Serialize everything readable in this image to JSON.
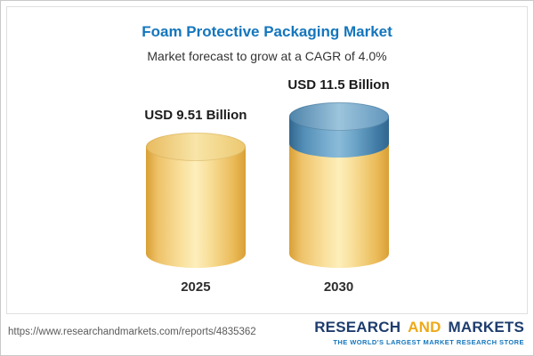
{
  "chart_data": {
    "type": "bar",
    "bar_style": "3d-cylinder",
    "title": "Foam Protective Packaging Market",
    "subtitle": "Market forecast to grow at a CAGR of 4.0%",
    "categories": [
      "2025",
      "2030"
    ],
    "values": [
      9.51,
      11.5
    ],
    "value_labels": [
      "USD 9.51 Billion",
      "USD 11.5 Billion"
    ],
    "unit": "USD Billion",
    "cagr": "4.0%",
    "xlabel": "",
    "ylabel": "",
    "ylim": [
      0,
      12
    ],
    "grid": false,
    "legend": false,
    "notes": "2030 cylinder has a blue cap segment on top of the yellow body representing growth over 2025",
    "bar_color": "#f2cf75",
    "cap_color": "#5b94bd"
  },
  "footer": {
    "url": "https://www.researchandmarkets.com/reports/4835362",
    "logo": {
      "research": "RESEARCH",
      "and": "AND",
      "markets": "MARKETS",
      "tagline": "THE WORLD'S LARGEST MARKET RESEARCH STORE"
    }
  },
  "colors": {
    "title_blue": "#1476bd",
    "cylinder_yellow": "#f2cf75",
    "cap_blue": "#5b94bd",
    "logo_navy": "#1e3c6d",
    "logo_gold": "#eda918",
    "tagline_blue": "#1476bd"
  }
}
